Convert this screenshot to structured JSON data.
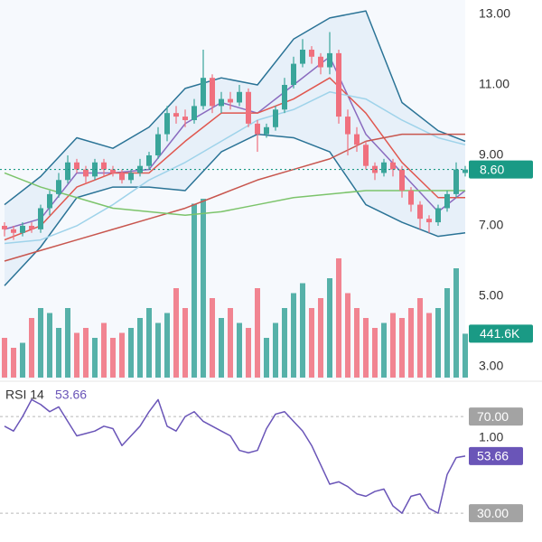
{
  "chart_data": [
    {
      "type": "candlestick",
      "ylim": [
        2.64,
        13.41
      ],
      "yticks": [
        {
          "value": 13,
          "label": "13.00"
        },
        {
          "value": 11,
          "label": "11.00"
        },
        {
          "value": 9,
          "label": "9.00"
        },
        {
          "value": 7,
          "label": "7.00"
        },
        {
          "value": 5,
          "label": "5.00"
        },
        {
          "value": 3,
          "label": "3.00"
        }
      ],
      "open": [
        7.0,
        6.9,
        6.8,
        7.0,
        6.9,
        7.5,
        7.9,
        8.3,
        8.8,
        8.6,
        8.4,
        8.8,
        8.6,
        8.5,
        8.3,
        8.5,
        8.7,
        9.0,
        9.6,
        10.2,
        10.1,
        10.0,
        10.4,
        11.2,
        10.4,
        10.6,
        10.5,
        10.8,
        9.9,
        9.6,
        9.8,
        10.3,
        11.0,
        11.6,
        12.0,
        11.8,
        11.5,
        11.9,
        10.1,
        9.6,
        9.3,
        8.7,
        8.5,
        8.8,
        8.6,
        8.0,
        7.6,
        7.2,
        7.1,
        7.5,
        7.9,
        8.5
      ],
      "high": [
        7.1,
        7.0,
        7.1,
        7.1,
        7.6,
        8.0,
        8.5,
        9.0,
        8.9,
        8.7,
        8.9,
        8.9,
        8.7,
        8.6,
        8.6,
        8.9,
        9.1,
        9.8,
        10.4,
        10.4,
        10.3,
        10.6,
        12.0,
        11.3,
        10.8,
        10.8,
        11.0,
        10.9,
        10.0,
        9.9,
        10.4,
        11.2,
        11.8,
        12.3,
        12.1,
        11.9,
        12.5,
        12.0,
        10.3,
        9.8,
        9.4,
        8.8,
        8.9,
        8.9,
        8.7,
        8.1,
        7.7,
        7.3,
        7.6,
        8.0,
        8.8,
        8.7
      ],
      "low": [
        6.7,
        6.6,
        6.7,
        6.8,
        6.8,
        7.3,
        7.8,
        8.2,
        8.5,
        8.2,
        8.3,
        8.4,
        8.4,
        8.2,
        8.2,
        8.4,
        8.6,
        8.9,
        9.4,
        9.9,
        9.8,
        9.9,
        10.3,
        10.2,
        10.2,
        10.3,
        10.4,
        9.8,
        9.1,
        9.5,
        9.7,
        10.2,
        10.9,
        11.5,
        11.6,
        11.3,
        11.3,
        9.9,
        9.0,
        9.1,
        8.6,
        8.3,
        8.4,
        8.4,
        7.8,
        7.4,
        6.9,
        6.8,
        7.0,
        7.4,
        7.8,
        8.4
      ],
      "close": [
        6.9,
        6.8,
        7.0,
        6.9,
        7.5,
        7.9,
        8.3,
        8.8,
        8.6,
        8.4,
        8.8,
        8.6,
        8.5,
        8.3,
        8.5,
        8.7,
        9.0,
        9.6,
        10.2,
        10.1,
        10.0,
        10.4,
        11.2,
        10.4,
        10.6,
        10.5,
        10.8,
        9.9,
        9.6,
        9.8,
        10.3,
        11.0,
        11.6,
        12.0,
        11.8,
        11.5,
        11.9,
        10.1,
        9.6,
        9.3,
        8.7,
        8.5,
        8.8,
        8.6,
        8.0,
        7.6,
        7.2,
        7.1,
        7.5,
        7.9,
        8.6,
        8.6
      ],
      "up_color": "#3aa59a",
      "down_color": "#f0707e",
      "volume": [
        400,
        300,
        350,
        600,
        700,
        650,
        500,
        700,
        450,
        500,
        400,
        550,
        400,
        450,
        500,
        600,
        700,
        550,
        650,
        900,
        700,
        1750,
        1800,
        800,
        600,
        700,
        550,
        500,
        900,
        400,
        550,
        700,
        850,
        950,
        700,
        800,
        1000,
        1200,
        850,
        700,
        600,
        500,
        550,
        650,
        600,
        700,
        800,
        650,
        700,
        900,
        1100,
        441.6
      ],
      "volume_lim": [
        0,
        2000
      ],
      "volume_label": "441.6K",
      "price_label": {
        "value": 8.6,
        "label": "8.60"
      },
      "price_color": "#1a9a85",
      "line_x": [
        0,
        4,
        8,
        12,
        16,
        20,
        24,
        28,
        32,
        36,
        40,
        44,
        48,
        51
      ],
      "bands": {
        "color": "#2a7396",
        "fill": "#e3edf8",
        "upper": [
          7.6,
          8.4,
          9.5,
          9.2,
          9.8,
          10.9,
          11.2,
          11.0,
          12.3,
          12.9,
          13.1,
          10.5,
          9.7,
          9.4
        ],
        "lower": [
          5.3,
          6.4,
          7.8,
          8.1,
          8.1,
          8.0,
          9.1,
          9.6,
          9.5,
          9.1,
          7.6,
          7.1,
          6.7,
          6.8
        ]
      },
      "series": [
        {
          "color": "#8a6bbf",
          "values": [
            6.9,
            7.2,
            8.5,
            8.5,
            8.6,
            9.9,
            10.5,
            10.2,
            11.0,
            11.8,
            9.6,
            8.5,
            7.4,
            8.0
          ]
        },
        {
          "color": "#e0574f",
          "values": [
            6.6,
            7.0,
            8.1,
            8.5,
            8.5,
            9.4,
            10.2,
            10.2,
            10.6,
            11.2,
            10.2,
            8.8,
            7.8,
            7.8
          ]
        },
        {
          "color": "#9fd3ea",
          "values": [
            6.5,
            6.6,
            7.0,
            7.6,
            8.3,
            8.8,
            9.4,
            10.0,
            10.3,
            10.8,
            10.6,
            10.0,
            9.5,
            9.3
          ]
        },
        {
          "color": "#c8564e",
          "values": [
            6.0,
            6.3,
            6.6,
            6.9,
            7.2,
            7.5,
            7.9,
            8.3,
            8.6,
            8.9,
            9.4,
            9.6,
            9.6,
            9.6
          ]
        },
        {
          "color": "#7cc46b",
          "values": [
            8.5,
            8.1,
            7.8,
            7.5,
            7.4,
            7.3,
            7.4,
            7.6,
            7.8,
            7.9,
            8.0,
            8.0,
            8.0,
            8.0
          ]
        }
      ]
    },
    {
      "type": "line",
      "title": "RSI 14",
      "values": [
        66,
        64,
        70,
        77,
        75,
        72,
        74,
        68,
        62,
        63,
        64,
        66,
        65,
        58,
        62,
        66,
        72,
        77,
        66,
        64,
        70,
        72,
        68,
        66,
        64,
        62,
        56,
        55,
        56,
        65,
        71,
        72,
        68,
        64,
        58,
        50,
        42,
        43,
        41,
        38,
        37,
        39,
        40,
        33,
        30,
        37,
        38,
        32,
        30,
        46,
        53,
        53.66
      ],
      "color": "#6a55b8",
      "ylim": [
        20.7,
        83.5
      ],
      "yticks": [
        {
          "value": 70,
          "label": "70.00"
        },
        {
          "value": 30,
          "label": "30.00"
        }
      ],
      "current": {
        "value": 53.66,
        "label": "53.66"
      },
      "overlay_label": "1.00"
    }
  ]
}
